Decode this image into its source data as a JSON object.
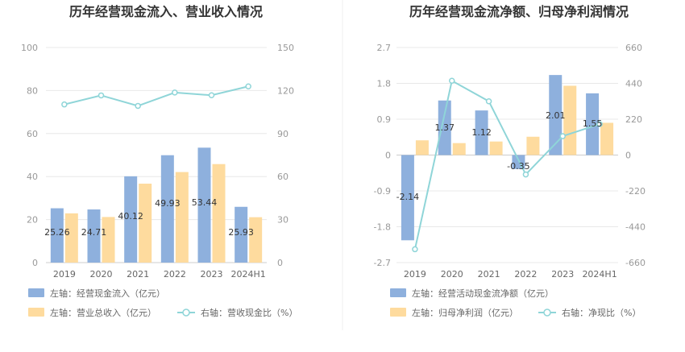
{
  "chart_data": [
    {
      "type": "bar",
      "title": "历年经营现金流入、营业收入情况",
      "categories": [
        "2019",
        "2020",
        "2021",
        "2022",
        "2023",
        "2024H1"
      ],
      "left_axis": {
        "ticks": [
          "0",
          "20",
          "40",
          "60",
          "80",
          "100"
        ],
        "range": [
          0,
          100
        ]
      },
      "right_axis": {
        "ticks": [
          "0",
          "30",
          "60",
          "90",
          "120",
          "150"
        ],
        "range": [
          0,
          150
        ]
      },
      "grid": true,
      "legend_position": "bottom",
      "series": [
        {
          "name": "左轴：经营现金流入（亿元）",
          "type": "bar",
          "axis": "left",
          "color": "#8eb0dd",
          "values": [
            25.26,
            24.71,
            40.12,
            49.93,
            53.44,
            25.93
          ],
          "labels": [
            "25.26",
            "24.71",
            "40.12",
            "49.93",
            "53.44",
            "25.93"
          ]
        },
        {
          "name": "左轴：营业总收入（亿元）",
          "type": "bar",
          "axis": "left",
          "color": "#fedb9e",
          "values": [
            22.9,
            21.2,
            36.7,
            42.1,
            45.8,
            21.1
          ]
        },
        {
          "name": "右轴：营收现金比（%）",
          "type": "line",
          "axis": "right",
          "color": "#8fd5d8",
          "values": [
            110.3,
            116.6,
            109.3,
            118.6,
            116.7,
            122.9
          ]
        }
      ]
    },
    {
      "type": "bar",
      "title": "历年经营现金流净额、归母净利润情况",
      "categories": [
        "2019",
        "2020",
        "2021",
        "2022",
        "2023",
        "2024H1"
      ],
      "left_axis": {
        "ticks": [
          "-2.7",
          "-1.8",
          "-0.9",
          "0",
          "0.9",
          "1.8",
          "2.7"
        ],
        "range": [
          -2.7,
          2.7
        ]
      },
      "right_axis": {
        "ticks": [
          "-660",
          "-440",
          "-220",
          "0",
          "220",
          "440",
          "660"
        ],
        "range": [
          -660,
          660
        ]
      },
      "grid": true,
      "legend_position": "bottom",
      "series": [
        {
          "name": "左轴：经营活动现金流净额（亿元）",
          "type": "bar",
          "axis": "left",
          "color": "#8eb0dd",
          "values": [
            -2.14,
            1.37,
            1.12,
            -0.35,
            2.01,
            1.55
          ],
          "labels": [
            "-2.14",
            "1.37",
            "1.12",
            "-0.35",
            "2.01",
            "1.55"
          ]
        },
        {
          "name": "左轴：归母净利润（亿元）",
          "type": "bar",
          "axis": "left",
          "color": "#fedb9e",
          "values": [
            0.37,
            0.3,
            0.34,
            0.46,
            1.74,
            0.81
          ]
        },
        {
          "name": "右轴：净现比（%）",
          "type": "line",
          "axis": "right",
          "color": "#8fd5d8",
          "values": [
            -578,
            456,
            330,
            -119,
            116,
            190
          ]
        }
      ]
    }
  ]
}
